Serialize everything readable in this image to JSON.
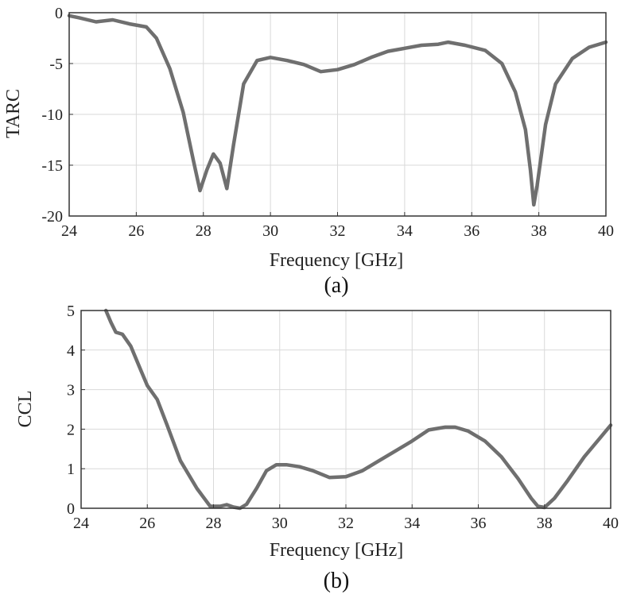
{
  "chart_data": [
    {
      "type": "line",
      "caption": "(a)",
      "xlabel": "Frequency [GHz]",
      "ylabel": "TARC",
      "xlim": [
        24,
        40
      ],
      "ylim": [
        -20,
        0
      ],
      "xticks": [
        24,
        26,
        28,
        30,
        32,
        34,
        36,
        38,
        40
      ],
      "yticks": [
        0,
        -5,
        -10,
        -15,
        -20
      ],
      "grid": true,
      "series": [
        {
          "color": "#6f6f6f",
          "x": [
            24.0,
            24.3,
            24.8,
            25.3,
            25.8,
            26.3,
            26.6,
            27.0,
            27.4,
            27.7,
            27.9,
            28.1,
            28.3,
            28.5,
            28.7,
            28.9,
            29.2,
            29.6,
            30.0,
            30.5,
            31.0,
            31.5,
            32.0,
            32.5,
            33.0,
            33.5,
            34.0,
            34.5,
            35.0,
            35.3,
            35.8,
            36.4,
            36.9,
            37.3,
            37.6,
            37.75,
            37.85,
            37.95,
            38.2,
            38.5,
            39.0,
            39.5,
            40.0
          ],
          "y": [
            -0.3,
            -0.5,
            -0.9,
            -0.7,
            -1.1,
            -1.4,
            -2.5,
            -5.5,
            -9.8,
            -14.5,
            -17.5,
            -15.5,
            -13.9,
            -14.8,
            -17.3,
            -13.0,
            -7.0,
            -4.7,
            -4.4,
            -4.7,
            -5.1,
            -5.8,
            -5.6,
            -5.1,
            -4.4,
            -3.8,
            -3.5,
            -3.2,
            -3.1,
            -2.9,
            -3.2,
            -3.7,
            -5.0,
            -7.8,
            -11.5,
            -15.5,
            -18.9,
            -17.0,
            -11.0,
            -7.0,
            -4.5,
            -3.4,
            -2.9
          ]
        }
      ]
    },
    {
      "type": "line",
      "caption": "(b)",
      "xlabel": "Frequency [GHz]",
      "ylabel": "CCL",
      "xlim": [
        24,
        40
      ],
      "ylim": [
        0,
        5
      ],
      "xticks": [
        24,
        26,
        28,
        30,
        32,
        34,
        36,
        38,
        40
      ],
      "yticks": [
        0,
        1,
        2,
        3,
        4,
        5
      ],
      "grid": true,
      "series": [
        {
          "color": "#6f6f6f",
          "x": [
            24.75,
            24.9,
            25.05,
            25.25,
            25.5,
            25.8,
            26.0,
            26.3,
            26.6,
            27.0,
            27.5,
            27.9,
            28.2,
            28.4,
            28.6,
            28.8,
            29.0,
            29.3,
            29.6,
            29.9,
            30.2,
            30.6,
            31.0,
            31.5,
            32.0,
            32.5,
            33.0,
            33.5,
            34.0,
            34.5,
            35.0,
            35.3,
            35.7,
            36.2,
            36.7,
            37.2,
            37.6,
            37.8,
            38.0,
            38.3,
            38.7,
            39.2,
            39.7,
            40.0
          ],
          "y": [
            5.0,
            4.7,
            4.45,
            4.4,
            4.1,
            3.5,
            3.1,
            2.75,
            2.1,
            1.2,
            0.5,
            0.05,
            0.05,
            0.09,
            0.03,
            0.0,
            0.1,
            0.5,
            0.95,
            1.1,
            1.1,
            1.05,
            0.95,
            0.78,
            0.8,
            0.95,
            1.2,
            1.45,
            1.7,
            1.98,
            2.05,
            2.05,
            1.95,
            1.7,
            1.3,
            0.75,
            0.25,
            0.05,
            0.02,
            0.25,
            0.7,
            1.3,
            1.8,
            2.1
          ]
        }
      ]
    }
  ]
}
